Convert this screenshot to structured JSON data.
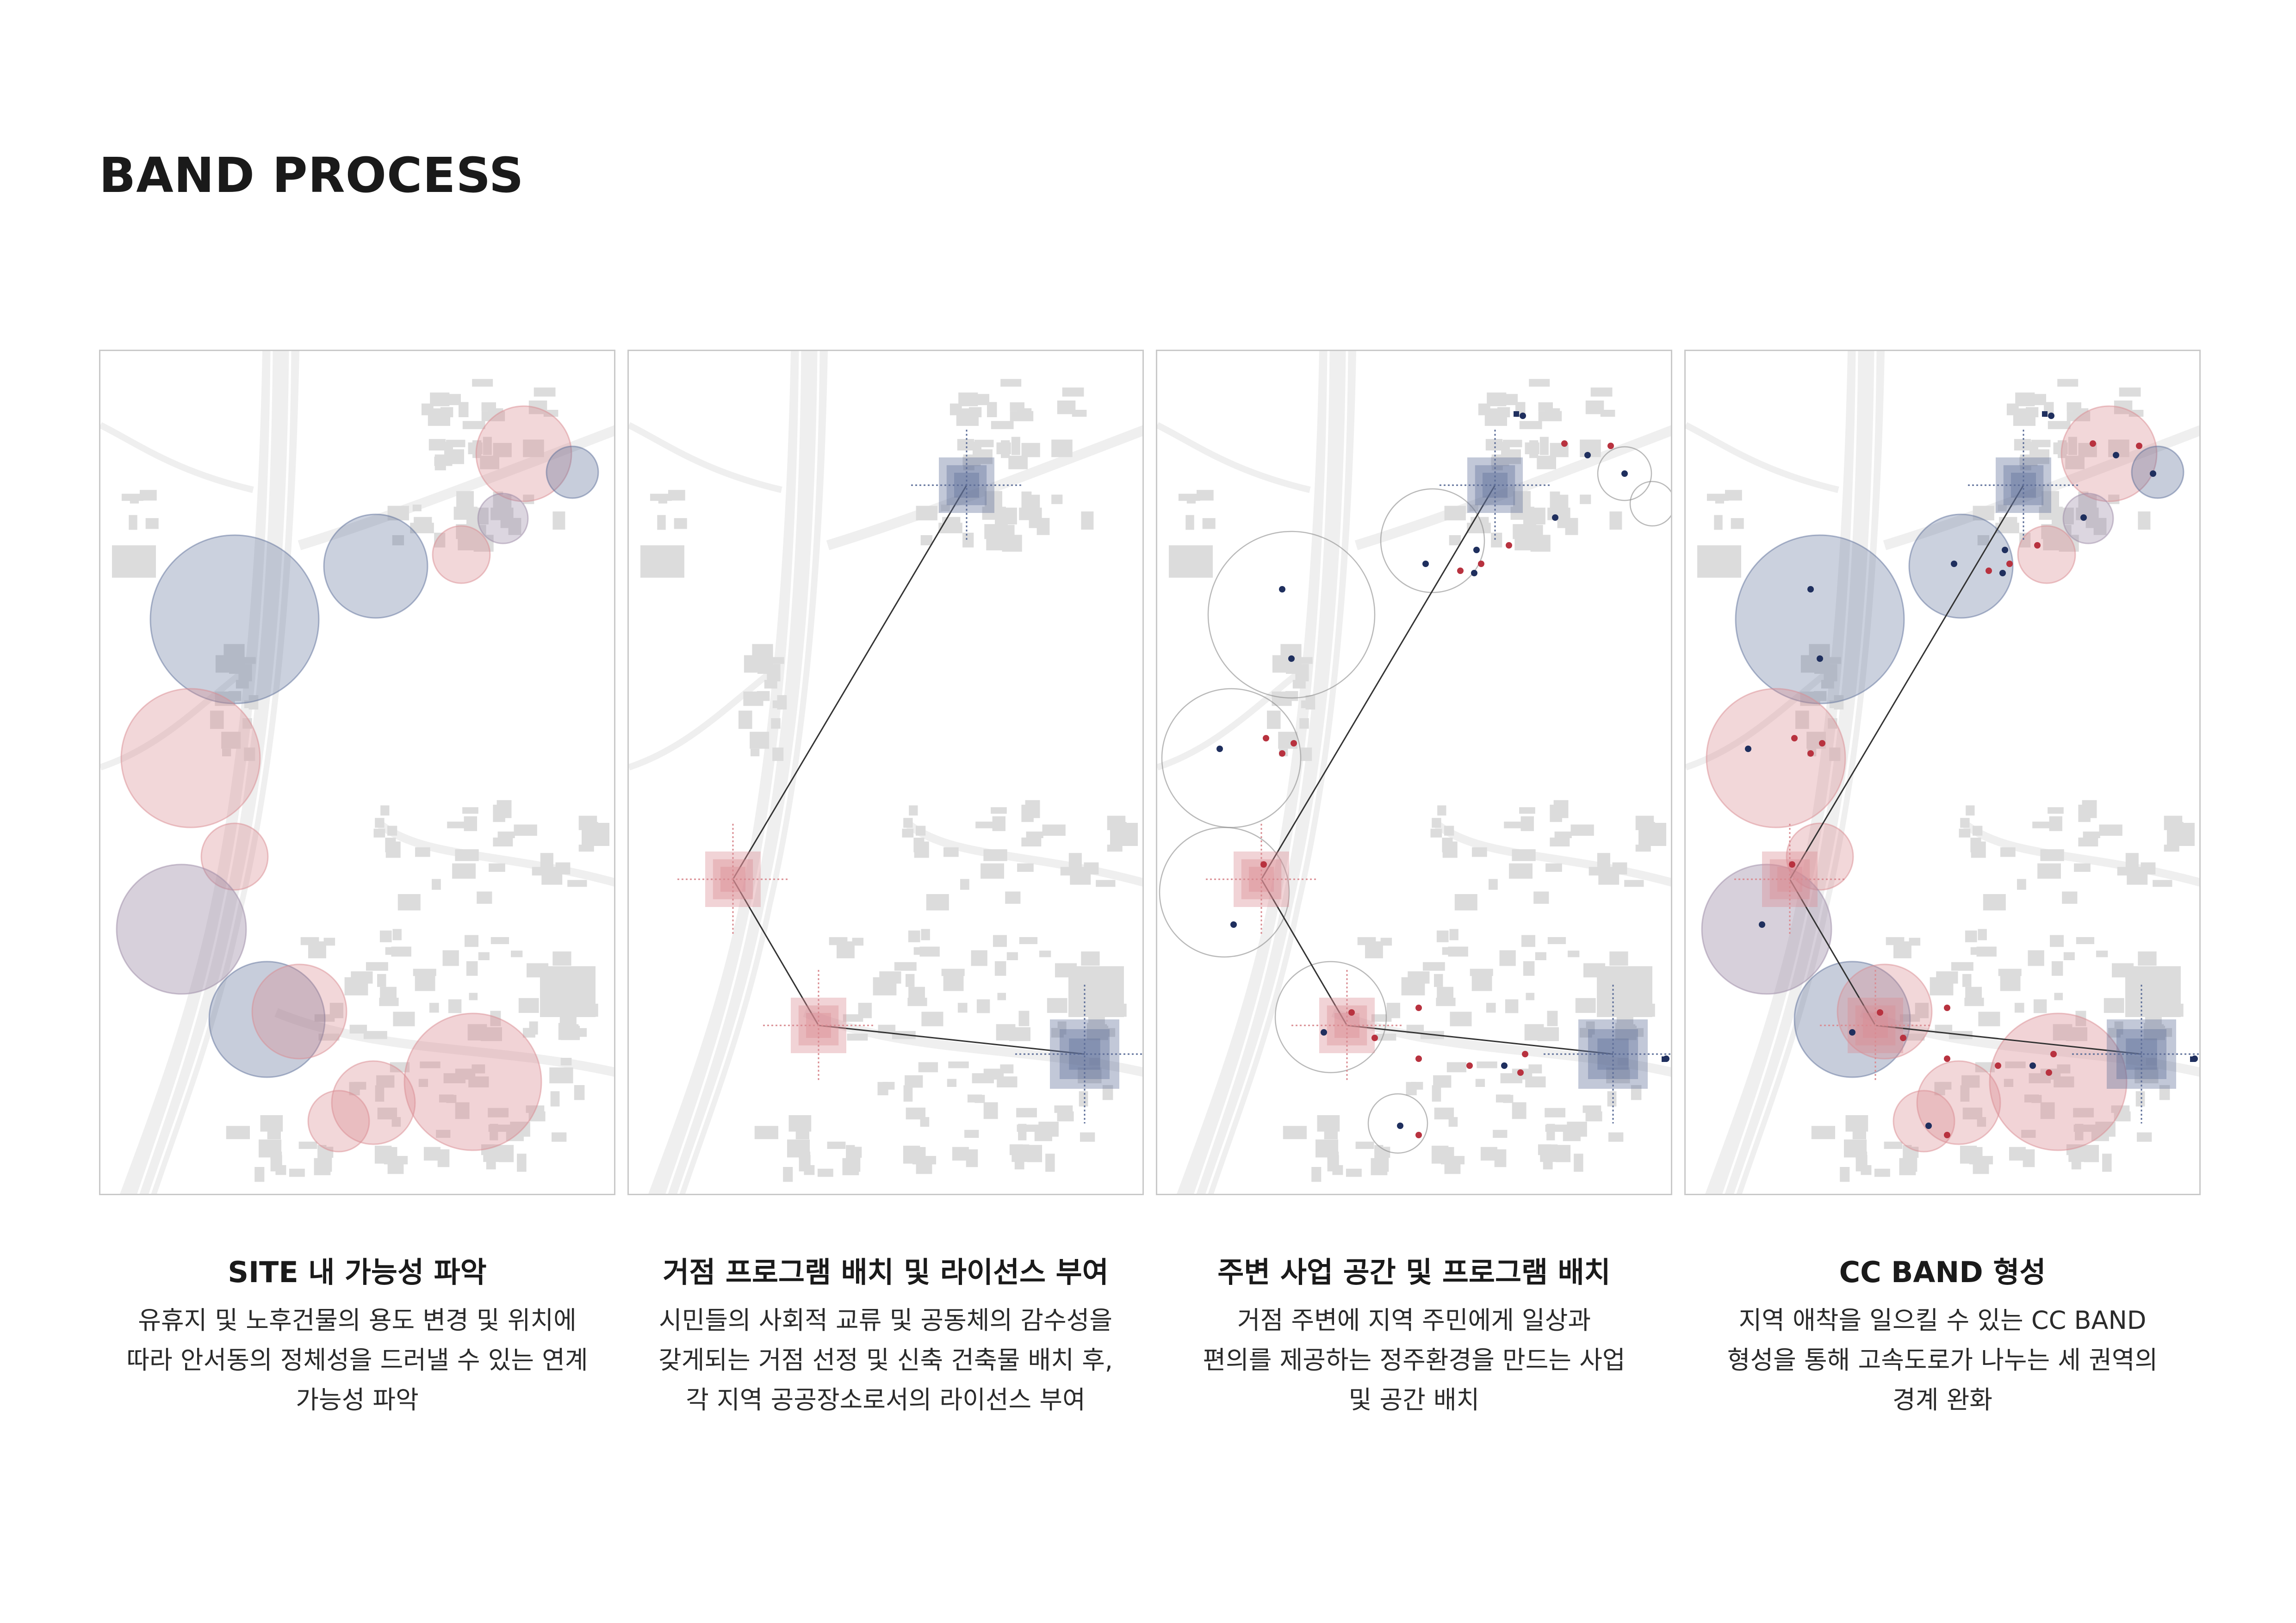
{
  "page": {
    "title": "BAND PROCESS"
  },
  "colors": {
    "blue": "#5e6f99",
    "red": "#d98c92",
    "mauve": "#9b8aa6",
    "map_road": "#efefef",
    "map_building": "#dcdcdc",
    "panel_border": "#c9c9c9",
    "dot_red": "#b8323f",
    "dot_blue": "#1f2f5e"
  },
  "panels": [
    {
      "id": "site-possibility",
      "heading": "SITE 내 가능성 파악",
      "lines": [
        "유휴지 및 노후건물의 용도 변경 및 위치에",
        "따라 안서동의 정체성을 드러낼 수 있는 연계",
        "가능성 파악"
      ]
    },
    {
      "id": "hub-program",
      "heading": "거점 프로그램 배치 및 라이선스 부여",
      "lines": [
        "시민들의 사회적 교류 및 공동체의 감수성을",
        "갖게되는 거점 선정 및 신축 건축물 배치 후,",
        "각 지역 공공장소로서의 라이선스 부여"
      ]
    },
    {
      "id": "surrounding-business",
      "heading": "주변 사업 공간 및 프로그램 배치",
      "lines": [
        "거점 주변에 지역 주민에게 일상과",
        "편의를 제공하는 정주환경을 만드는 사업",
        "및 공간 배치"
      ]
    },
    {
      "id": "cc-band",
      "heading": "CC BAND 형성",
      "lines": [
        "지역 애착을 일으킬 수 있는 CC BAND",
        "형성을 통해 고속도로가 나누는 세 권역의",
        "경계 완화"
      ]
    }
  ]
}
